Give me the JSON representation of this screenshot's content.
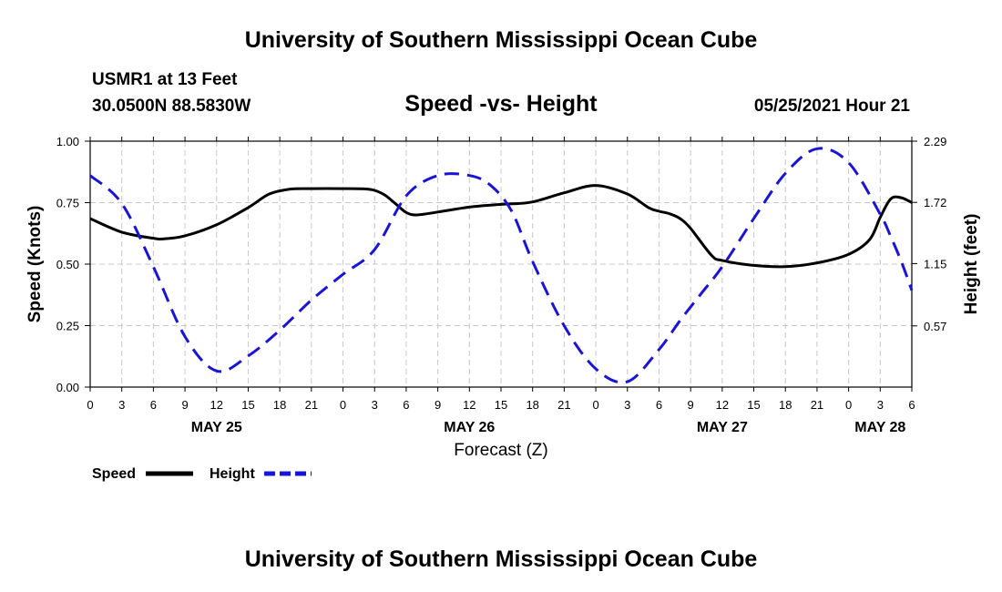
{
  "header": {
    "title": "University of Southern Mississippi Ocean Cube",
    "station": "USMR1 at 13 Feet",
    "coords": "30.0500N  88.5830W",
    "datetime": "05/25/2021 Hour 21"
  },
  "footer": {
    "title": "University of Southern Mississippi Ocean Cube"
  },
  "chart_data": {
    "type": "line",
    "title": "Speed -vs- Height",
    "xlabel": "Forecast (Z)",
    "ylabel": "Speed (Knots)",
    "y2label": "Height (feet)",
    "xlim": [
      0,
      78
    ],
    "ylim": [
      0,
      1
    ],
    "y2lim": [
      0,
      2.29
    ],
    "grid": true,
    "x_tick_values": [
      0,
      3,
      6,
      9,
      12,
      15,
      18,
      21,
      24,
      27,
      30,
      33,
      36,
      39,
      42,
      45,
      48,
      51,
      54,
      57,
      60,
      63,
      66,
      69,
      72,
      75,
      78
    ],
    "x_tick_labels": [
      "0",
      "3",
      "6",
      "9",
      "12",
      "15",
      "18",
      "21",
      "0",
      "3",
      "6",
      "9",
      "12",
      "15",
      "18",
      "21",
      "0",
      "3",
      "6",
      "9",
      "12",
      "15",
      "18",
      "21",
      "0",
      "3",
      "6"
    ],
    "day_labels": [
      {
        "x": 12,
        "label": "MAY 25"
      },
      {
        "x": 36,
        "label": "MAY 26"
      },
      {
        "x": 60,
        "label": "MAY 27"
      },
      {
        "x": 75,
        "label": "MAY 28"
      }
    ],
    "y_ticks": [
      {
        "value": 0,
        "label": "0.00"
      },
      {
        "value": 0.25,
        "label": "0.25"
      },
      {
        "value": 0.5,
        "label": "0.50"
      },
      {
        "value": 0.75,
        "label": "0.75"
      },
      {
        "value": 1,
        "label": "1.00"
      }
    ],
    "y2_ticks": [
      {
        "value": 0.57,
        "label": "0.57"
      },
      {
        "value": 1.15,
        "label": "1.15"
      },
      {
        "value": 1.72,
        "label": "1.72"
      },
      {
        "value": 2.29,
        "label": "2.29"
      }
    ],
    "series": [
      {
        "name": "Speed",
        "axis": "left",
        "color": "#000000",
        "dash": "solid",
        "x": [
          0,
          3,
          6,
          7,
          9,
          12,
          15,
          17,
          19,
          21,
          24,
          26,
          27,
          28,
          29,
          30,
          31,
          33,
          36,
          39,
          40,
          42,
          45,
          48,
          51,
          53,
          54,
          55,
          56,
          57,
          59,
          60,
          63,
          66,
          69,
          72,
          74,
          75,
          76,
          77,
          78
        ],
        "y": [
          0.685,
          0.63,
          0.605,
          0.603,
          0.615,
          0.66,
          0.73,
          0.785,
          0.805,
          0.807,
          0.807,
          0.806,
          0.8,
          0.78,
          0.745,
          0.71,
          0.7,
          0.712,
          0.732,
          0.743,
          0.745,
          0.753,
          0.79,
          0.82,
          0.785,
          0.73,
          0.715,
          0.705,
          0.685,
          0.645,
          0.535,
          0.515,
          0.495,
          0.49,
          0.505,
          0.54,
          0.6,
          0.69,
          0.765,
          0.77,
          0.75
        ]
      },
      {
        "name": "Height",
        "axis": "right",
        "color": "#1a14d6",
        "dash": "dashed",
        "x": [
          0,
          3,
          6,
          9,
          12,
          15,
          18,
          21,
          24,
          27,
          30,
          33,
          36,
          38,
          40,
          42,
          45,
          48,
          51,
          54,
          56,
          58,
          60,
          63,
          66,
          69,
          72,
          75,
          76,
          77,
          78
        ],
        "y": [
          1.97,
          1.71,
          1.12,
          0.47,
          0.15,
          0.29,
          0.53,
          0.81,
          1.05,
          1.28,
          1.78,
          1.97,
          1.97,
          1.88,
          1.64,
          1.17,
          0.57,
          0.17,
          0.05,
          0.35,
          0.62,
          0.87,
          1.12,
          1.57,
          1.99,
          2.22,
          2.09,
          1.61,
          1.4,
          1.17,
          0.9
        ]
      }
    ],
    "legend": [
      {
        "label": "Speed",
        "color": "#000000",
        "dash": "solid"
      },
      {
        "label": "Height",
        "color": "#1a14d6",
        "dash": "dashed"
      }
    ]
  }
}
